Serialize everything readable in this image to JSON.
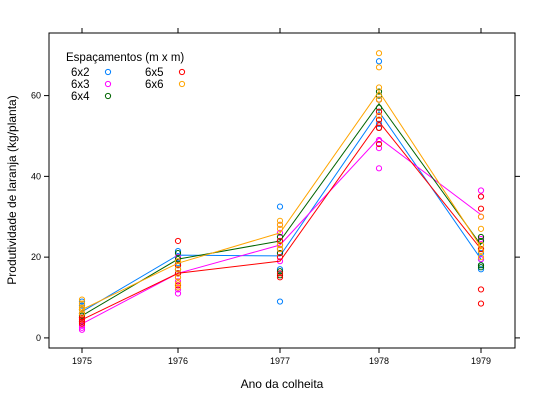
{
  "chart_data": {
    "type": "scatter",
    "xlabel": "Ano da colheita",
    "ylabel": "Produtividade de laranja (kg/planta)",
    "categories": [
      "1975",
      "1976",
      "1977",
      "1978",
      "1979"
    ],
    "ylim": [
      -2.5,
      75.5
    ],
    "yticks": [
      0,
      20,
      40,
      60
    ],
    "grid": false,
    "legend": {
      "title": "Espaçamentos (m x m)",
      "placement": "top-left"
    },
    "series": [
      {
        "name": "6x2",
        "color": "#0080ff",
        "mean": [
          6.5,
          20.5,
          20.3,
          56.0,
          19.5
        ],
        "points": [
          [
            9.0,
            8.0,
            7.0,
            6.0,
            5.0
          ],
          [
            21.5,
            20.0,
            18.5,
            17.0,
            16.0
          ],
          [
            32.5,
            24.0,
            22.0,
            17.0,
            9.0
          ],
          [
            68.5,
            59.0,
            56.0,
            53.0,
            48.0
          ],
          [
            23.0,
            21.0,
            19.5,
            18.0,
            17.0
          ]
        ]
      },
      {
        "name": "6x3",
        "color": "#ff00ff",
        "mean": [
          3.5,
          16.0,
          23.0,
          49.5,
          30.5
        ],
        "points": [
          [
            5.0,
            4.0,
            3.0,
            2.5,
            2.0
          ],
          [
            20.0,
            17.0,
            14.0,
            12.0,
            11.0
          ],
          [
            28.0,
            26.0,
            24.0,
            21.0,
            19.0
          ],
          [
            55.0,
            52.0,
            49.0,
            47.0,
            42.0
          ],
          [
            36.5,
            35.0,
            30.0,
            24.5,
            19.5
          ]
        ]
      },
      {
        "name": "6x4",
        "color": "#006400",
        "mean": [
          5.5,
          19.5,
          24.0,
          58.0,
          23.0
        ],
        "points": [
          [
            7.0,
            6.0,
            5.5,
            5.0,
            4.0
          ],
          [
            21.0,
            19.5,
            18.0,
            17.0,
            16.0
          ],
          [
            25.0,
            23.0,
            21.0,
            16.5,
            15.5
          ],
          [
            61.0,
            60.0,
            57.0,
            54.0,
            52.0
          ],
          [
            25.0,
            24.0,
            22.0,
            18.0,
            17.5
          ]
        ]
      },
      {
        "name": "6x5",
        "color": "#ff0000",
        "mean": [
          4.5,
          16.0,
          19.0,
          53.5,
          22.0
        ],
        "points": [
          [
            6.0,
            5.0,
            4.5,
            4.0,
            3.5
          ],
          [
            24.0,
            18.0,
            16.0,
            15.0,
            13.0
          ],
          [
            24.0,
            22.0,
            20.0,
            16.0,
            15.0
          ],
          [
            59.0,
            56.0,
            54.0,
            52.0,
            48.0
          ],
          [
            35.0,
            32.0,
            22.0,
            12.0,
            8.5
          ]
        ]
      },
      {
        "name": "6x6",
        "color": "#ffa500",
        "mean": [
          7.0,
          18.5,
          26.0,
          61.0,
          22.5
        ],
        "points": [
          [
            9.5,
            8.5,
            7.5,
            7.0,
            6.0
          ],
          [
            19.0,
            17.0,
            15.0,
            13.5,
            12.5
          ],
          [
            29.0,
            28.0,
            27.0,
            23.0,
            22.0
          ],
          [
            70.5,
            67.0,
            62.0,
            59.0,
            55.0
          ],
          [
            30.0,
            27.0,
            23.0,
            21.5,
            20.0
          ]
        ]
      }
    ]
  }
}
